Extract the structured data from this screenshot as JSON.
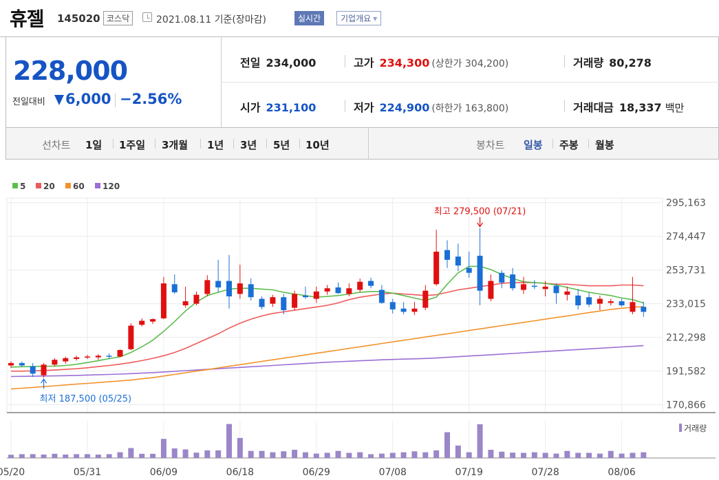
{
  "header": {
    "name": "휴젤",
    "code": "145020",
    "market": "코스닥",
    "date_text": "2021.08.11 기준(장마감)",
    "live_label": "실시간",
    "company_label": "기업개요"
  },
  "price": {
    "current": "228,000",
    "diff_label": "전일대비",
    "diff_value": "6,000",
    "diff_pct": "−2.56%",
    "direction": "down"
  },
  "stats": {
    "prev_label": "전일",
    "prev_value": "234,000",
    "high_label": "고가",
    "high_value": "234,300",
    "upper_limit_text": "(상한가 304,200)",
    "volume_label": "거래량",
    "volume_value": "80,278",
    "open_label": "시가",
    "open_value": "231,100",
    "low_label": "저가",
    "low_value": "224,900",
    "lower_limit_text": "(하한가 163,800)",
    "amount_label": "거래대금",
    "amount_value": "18,337",
    "amount_unit": "백만"
  },
  "tabs": {
    "line_label": "선차트",
    "periods": [
      "1일",
      "1주일",
      "3개월",
      "1년",
      "3년",
      "5년",
      "10년"
    ],
    "candle_label": "봉차트",
    "candle_periods": [
      "일봉",
      "주봉",
      "월봉"
    ],
    "selected_candle": "일봉"
  },
  "colors": {
    "up": "#e01010",
    "down": "#1a6fd6",
    "ma5": "#5bbd4c",
    "ma20": "#ee5a5a",
    "ma60": "#f2922a",
    "ma120": "#9b6ed6",
    "volume": "#9a86c8"
  },
  "chart_data": {
    "type": "candlestick",
    "legend": [
      {
        "name": "5",
        "color": "#5bbd4c"
      },
      {
        "name": "20",
        "color": "#ee5a5a"
      },
      {
        "name": "60",
        "color": "#f2922a"
      },
      {
        "name": "120",
        "color": "#9b6ed6"
      }
    ],
    "y_ticks": [
      "295,163",
      "274,447",
      "253,731",
      "233,015",
      "212,298",
      "191,582",
      "170,866"
    ],
    "ylim": [
      166000,
      298000
    ],
    "x_ticks": [
      {
        "label": "05/20",
        "index": 0
      },
      {
        "label": "05/31",
        "index": 7
      },
      {
        "label": "06/09",
        "index": 14
      },
      {
        "label": "06/18",
        "index": 21
      },
      {
        "label": "06/29",
        "index": 28
      },
      {
        "label": "07/08",
        "index": 35
      },
      {
        "label": "07/19",
        "index": 42
      },
      {
        "label": "07/28",
        "index": 49
      },
      {
        "label": "08/06",
        "index": 56
      }
    ],
    "max_annotation": {
      "text": "최고 279,500 (07/21)",
      "index": 43,
      "value": 279500
    },
    "min_annotation": {
      "text": "최저 187,500 (05/25)",
      "index": 3,
      "value": 187500
    },
    "volume_label": "거래량",
    "candles": [
      [
        195000,
        197500,
        193500,
        196500
      ],
      [
        196500,
        197500,
        194000,
        195000
      ],
      [
        194500,
        196500,
        188000,
        190000
      ],
      [
        189000,
        196500,
        187500,
        195500
      ],
      [
        195500,
        199500,
        194500,
        198500
      ],
      [
        197500,
        200500,
        196000,
        199500
      ],
      [
        199000,
        201000,
        198000,
        200000
      ],
      [
        200000,
        201500,
        199000,
        200500
      ],
      [
        200000,
        202000,
        198500,
        201000
      ],
      [
        201000,
        202500,
        199000,
        200500
      ],
      [
        200500,
        205000,
        200000,
        204500
      ],
      [
        205000,
        221000,
        204500,
        219500
      ],
      [
        220000,
        224000,
        219000,
        222500
      ],
      [
        222000,
        224000,
        220500,
        223500
      ],
      [
        224000,
        249500,
        223500,
        245500
      ],
      [
        245000,
        251000,
        239000,
        240000
      ],
      [
        232000,
        243500,
        230500,
        234500
      ],
      [
        233000,
        240500,
        232000,
        238500
      ],
      [
        239000,
        250500,
        237500,
        247500
      ],
      [
        247000,
        260000,
        240000,
        243000
      ],
      [
        247000,
        263000,
        230000,
        237500
      ],
      [
        239000,
        257000,
        236000,
        245500
      ],
      [
        245000,
        248500,
        235000,
        237000
      ],
      [
        236000,
        237500,
        229500,
        231000
      ],
      [
        233000,
        238500,
        231000,
        237000
      ],
      [
        237000,
        239000,
        226500,
        229000
      ],
      [
        230500,
        241000,
        229000,
        239000
      ],
      [
        238000,
        243500,
        236000,
        237000
      ],
      [
        236000,
        243500,
        233500,
        240500
      ],
      [
        240500,
        244500,
        238500,
        242500
      ],
      [
        243000,
        246000,
        239000,
        239500
      ],
      [
        239000,
        245500,
        237500,
        242500
      ],
      [
        241500,
        248500,
        240000,
        246500
      ],
      [
        247000,
        249000,
        242500,
        244000
      ],
      [
        241500,
        244500,
        233000,
        233500
      ],
      [
        234000,
        236000,
        227000,
        229500
      ],
      [
        230000,
        234000,
        226500,
        228000
      ],
      [
        228000,
        234000,
        226000,
        230000
      ],
      [
        230500,
        244500,
        229000,
        241000
      ],
      [
        245000,
        278500,
        244000,
        265000
      ],
      [
        266000,
        272000,
        255000,
        260000
      ],
      [
        262000,
        270000,
        253000,
        256500
      ],
      [
        255000,
        265000,
        249000,
        252000
      ],
      [
        262500,
        279500,
        232000,
        241000
      ],
      [
        236000,
        251000,
        234500,
        247000
      ],
      [
        252000,
        253500,
        242500,
        246000
      ],
      [
        251000,
        255000,
        241000,
        242500
      ],
      [
        241500,
        249500,
        239000,
        245000
      ],
      [
        244000,
        247500,
        242000,
        243500
      ],
      [
        242000,
        247000,
        237500,
        243500
      ],
      [
        244000,
        245500,
        233000,
        239500
      ],
      [
        238500,
        243500,
        235000,
        240500
      ],
      [
        238000,
        242000,
        229500,
        232000
      ],
      [
        237000,
        240000,
        231000,
        232500
      ],
      [
        233000,
        238000,
        229000,
        236000
      ],
      [
        233500,
        236000,
        232000,
        234500
      ],
      [
        234500,
        236000,
        231000,
        232000
      ],
      [
        228000,
        249500,
        226500,
        234000
      ],
      [
        231100,
        234300,
        224900,
        228000
      ]
    ],
    "ma5": [
      194000,
      194200,
      194400,
      194500,
      194600,
      195000,
      195700,
      196800,
      198000,
      199200,
      200300,
      203000,
      206500,
      210500,
      216000,
      222000,
      228500,
      234000,
      238000,
      240000,
      242000,
      242500,
      242500,
      242000,
      241500,
      240000,
      239000,
      238000,
      237000,
      237500,
      238000,
      239000,
      240000,
      240500,
      240500,
      239500,
      238000,
      236500,
      235000,
      237000,
      245000,
      252000,
      256000,
      256000,
      254000,
      251000,
      248500,
      246500,
      246000,
      245500,
      244500,
      243000,
      241500,
      240000,
      239000,
      238000,
      236500,
      235500,
      233500
    ],
    "ma20": [
      191500,
      191500,
      191700,
      191900,
      192200,
      192600,
      193000,
      193600,
      194300,
      195000,
      195800,
      196800,
      198000,
      199400,
      201000,
      203000,
      205500,
      208500,
      211500,
      214500,
      218000,
      221000,
      223500,
      225500,
      227000,
      228000,
      229000,
      230000,
      231000,
      232000,
      233500,
      235500,
      237000,
      238000,
      239000,
      239500,
      239000,
      238500,
      238000,
      238500,
      240000,
      241500,
      242500,
      243500,
      244500,
      245500,
      246000,
      246000,
      246000,
      245500,
      245000,
      245000,
      244500,
      244000,
      244000,
      244000,
      244500,
      244500,
      244000
    ],
    "ma60": [
      180500,
      181000,
      181500,
      182000,
      182500,
      183000,
      183500,
      184000,
      184500,
      185000,
      185500,
      186000,
      186800,
      187500,
      188500,
      189500,
      190500,
      191500,
      192500,
      193500,
      194500,
      195500,
      196500,
      197500,
      198500,
      199500,
      200500,
      201500,
      202500,
      203500,
      204500,
      205500,
      206500,
      207500,
      208500,
      209500,
      210500,
      211500,
      212500,
      213500,
      214500,
      215500,
      216500,
      217500,
      218500,
      219500,
      220500,
      221500,
      222500,
      223500,
      224500,
      225500,
      226500,
      227500,
      228500,
      229500,
      230200,
      230800,
      231200
    ],
    "ma120": [
      188200,
      188300,
      188400,
      188500,
      188600,
      188700,
      188900,
      189100,
      189300,
      189500,
      189700,
      190000,
      190300,
      190600,
      191000,
      191400,
      191800,
      192200,
      192600,
      193000,
      193400,
      193800,
      194200,
      194600,
      195000,
      195400,
      195800,
      196200,
      196600,
      197000,
      197300,
      197600,
      197900,
      198200,
      198500,
      198700,
      198900,
      199100,
      199300,
      199600,
      200000,
      200400,
      200800,
      201200,
      201600,
      202000,
      202400,
      202800,
      203200,
      203600,
      204000,
      204400,
      204800,
      205200,
      205600,
      206000,
      206400,
      206800,
      207200
    ],
    "volume": [
      17,
      20,
      20,
      18,
      22,
      18,
      20,
      20,
      18,
      20,
      30,
      52,
      22,
      22,
      100,
      50,
      45,
      28,
      40,
      40,
      178,
      105,
      37,
      37,
      30,
      35,
      43,
      30,
      23,
      27,
      37,
      27,
      30,
      20,
      23,
      27,
      30,
      35,
      30,
      40,
      135,
      65,
      30,
      177,
      43,
      33,
      28,
      27,
      30,
      27,
      23,
      37,
      27,
      27,
      23,
      37,
      23,
      27,
      30
    ]
  }
}
